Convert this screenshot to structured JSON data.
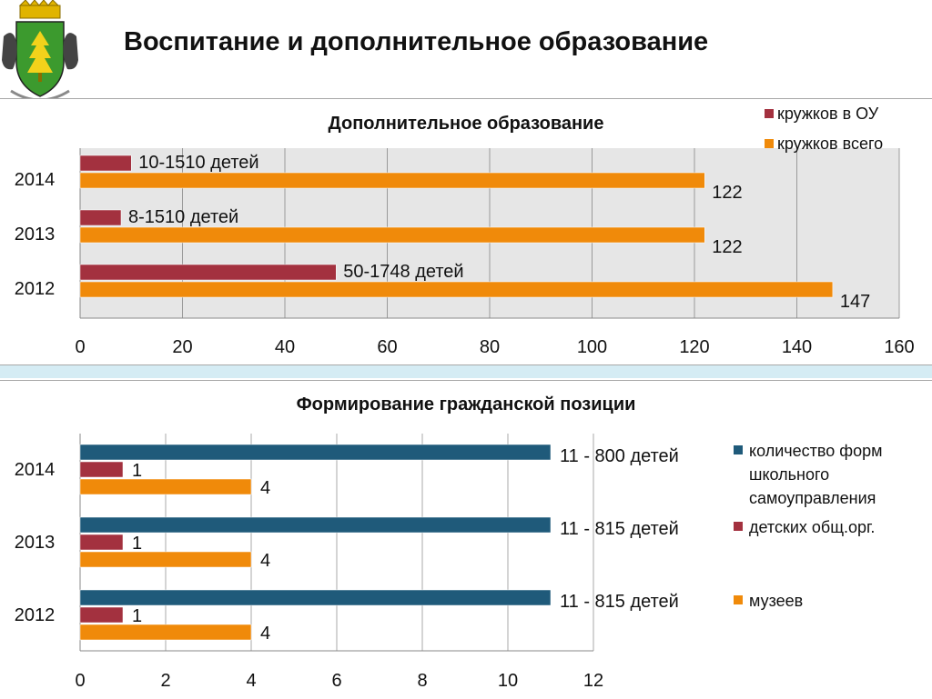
{
  "page": {
    "title": "Воспитание и дополнительное образование"
  },
  "chart_data": [
    {
      "type": "bar",
      "orientation": "horizontal",
      "title": "Дополнительное образование",
      "categories": [
        "2014",
        "2013",
        "2012"
      ],
      "series": [
        {
          "name": "кружков в ОУ",
          "color": "#a3313f",
          "values": [
            10,
            8,
            50
          ],
          "labels": [
            "10-1510 детей",
            "8-1510 детей",
            "50-1748 детей"
          ]
        },
        {
          "name": "кружков всего",
          "color": "#f08a0a",
          "values": [
            122,
            122,
            147
          ],
          "labels": [
            "122",
            "122",
            "147"
          ]
        }
      ],
      "xlim": [
        0,
        160
      ],
      "xticks": [
        0,
        20,
        40,
        60,
        80,
        100,
        120,
        140,
        160
      ],
      "grid": true,
      "legend": "top-right"
    },
    {
      "type": "bar",
      "orientation": "horizontal",
      "title": "Формирование гражданской позиции",
      "categories": [
        "2014",
        "2013",
        "2012"
      ],
      "series": [
        {
          "name": "количество форм школьного самоуправления",
          "name_lines": [
            "количество форм",
            "школьного",
            "самоуправления"
          ],
          "color": "#1f5a7a",
          "values": [
            11,
            11,
            11
          ],
          "labels": [
            "11 - 800 детей",
            "11 - 815 детей",
            "11 - 815 детей"
          ]
        },
        {
          "name": "детских общ.орг.",
          "name_lines": [
            "детских общ.орг."
          ],
          "color": "#a3313f",
          "values": [
            1,
            1,
            1
          ],
          "labels": [
            "1",
            "1",
            "1"
          ]
        },
        {
          "name": "музеев",
          "name_lines": [
            "музеев"
          ],
          "color": "#f08a0a",
          "values": [
            4,
            4,
            4
          ],
          "labels": [
            "4",
            "4",
            "4"
          ]
        }
      ],
      "xlim": [
        0,
        12
      ],
      "xticks": [
        0,
        2,
        4,
        6,
        8,
        10,
        12
      ],
      "grid": true,
      "legend": "right"
    }
  ]
}
